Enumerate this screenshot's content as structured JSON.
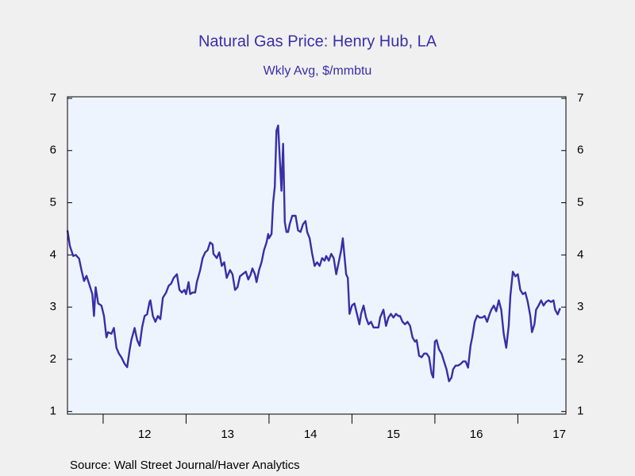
{
  "chart_data": {
    "type": "line",
    "title": "Natural Gas Price: Henry Hub, LA",
    "subtitle": "Wkly Avg, $/mmbtu",
    "source": "Source:  Wall Street Journal/Haver Analytics",
    "color": "#3a2ea8",
    "x": [
      2011.57,
      2011.6,
      2011.64,
      2011.67,
      2011.71,
      2011.74,
      2011.77,
      2011.8,
      2011.83,
      2011.87,
      2011.89,
      2011.91,
      2011.94,
      2011.98,
      2012.01,
      2012.04,
      2012.06,
      2012.1,
      2012.13,
      2012.16,
      2012.19,
      2012.22,
      2012.26,
      2012.29,
      2012.32,
      2012.34,
      2012.38,
      2012.41,
      2012.44,
      2012.47,
      2012.5,
      2012.53,
      2012.56,
      2012.57,
      2012.6,
      2012.63,
      2012.66,
      2012.69,
      2012.72,
      2012.76,
      2012.79,
      2012.82,
      2012.85,
      2012.89,
      2012.92,
      2012.95,
      2012.98,
      2013.0,
      2013.03,
      2013.05,
      2013.08,
      2013.11,
      2013.13,
      2013.17,
      2013.2,
      2013.23,
      2013.26,
      2013.29,
      2013.32,
      2013.33,
      2013.37,
      2013.4,
      2013.43,
      2013.46,
      2013.49,
      2013.53,
      2013.56,
      2013.59,
      2013.62,
      2013.65,
      2013.68,
      2013.72,
      2013.75,
      2013.78,
      2013.8,
      2013.83,
      2013.85,
      2013.88,
      2013.91,
      2013.94,
      2013.97,
      2013.99,
      2014.0,
      2014.03,
      2014.05,
      2014.07,
      2014.09,
      2014.11,
      2014.13,
      2014.15,
      2014.17,
      2014.19,
      2014.21,
      2014.23,
      2014.25,
      2014.28,
      2014.32,
      2014.35,
      2014.38,
      2014.41,
      2014.44,
      2014.46,
      2014.49,
      2014.52,
      2014.55,
      2014.58,
      2014.61,
      2014.64,
      2014.67,
      2014.69,
      2014.72,
      2014.75,
      2014.78,
      2014.81,
      2014.84,
      2014.87,
      2014.89,
      2014.9,
      2014.93,
      2014.95,
      2014.97,
      2015.0,
      2015.03,
      2015.06,
      2015.09,
      2015.11,
      2015.14,
      2015.17,
      2015.2,
      2015.23,
      2015.26,
      2015.29,
      2015.32,
      2015.34,
      2015.38,
      2015.41,
      2015.44,
      2015.47,
      2015.5,
      2015.53,
      2015.56,
      2015.58,
      2015.61,
      2015.64,
      2015.67,
      2015.7,
      2015.73,
      2015.76,
      2015.78,
      2015.81,
      2015.84,
      2015.87,
      2015.9,
      2015.93,
      2015.96,
      2015.98,
      2016.0,
      2016.02,
      2016.05,
      2016.08,
      2016.11,
      2016.14,
      2016.17,
      2016.2,
      2016.22,
      2016.25,
      2016.28,
      2016.31,
      2016.34,
      2016.37,
      2016.4,
      2016.43,
      2016.45,
      2016.48,
      2016.51,
      2016.54,
      2016.57,
      2016.6,
      2016.63,
      2016.66,
      2016.68,
      2016.71,
      2016.74,
      2016.77,
      2016.8,
      2016.83,
      2016.86,
      2016.89,
      2016.91,
      2016.94,
      2016.97,
      2017.0,
      2017.03,
      2017.06,
      2017.09,
      2017.12,
      2017.15,
      2017.17,
      2017.2,
      2017.22,
      2017.25,
      2017.28,
      2017.31,
      2017.34,
      2017.37,
      2017.4,
      2017.43,
      2017.45,
      2017.48,
      2017.51
    ],
    "values": [
      4.47,
      4.17,
      3.98,
      4.0,
      3.93,
      3.7,
      3.5,
      3.6,
      3.45,
      3.25,
      2.83,
      3.38,
      3.07,
      3.03,
      2.83,
      2.42,
      2.52,
      2.49,
      2.6,
      2.22,
      2.11,
      2.04,
      1.91,
      1.85,
      2.19,
      2.37,
      2.6,
      2.37,
      2.26,
      2.61,
      2.83,
      2.86,
      3.1,
      3.13,
      2.83,
      2.72,
      2.83,
      2.77,
      3.18,
      3.28,
      3.41,
      3.45,
      3.56,
      3.63,
      3.33,
      3.28,
      3.33,
      3.25,
      3.48,
      3.25,
      3.28,
      3.28,
      3.48,
      3.71,
      3.94,
      4.05,
      4.09,
      4.24,
      4.2,
      4.02,
      3.94,
      4.05,
      3.79,
      3.86,
      3.56,
      3.71,
      3.63,
      3.33,
      3.38,
      3.59,
      3.63,
      3.68,
      3.53,
      3.63,
      3.74,
      3.63,
      3.48,
      3.71,
      3.86,
      4.09,
      4.24,
      4.4,
      4.32,
      4.4,
      5.0,
      5.31,
      6.38,
      6.48,
      5.84,
      5.23,
      6.13,
      4.63,
      4.44,
      4.44,
      4.59,
      4.75,
      4.75,
      4.47,
      4.44,
      4.59,
      4.65,
      4.44,
      4.32,
      4.02,
      3.79,
      3.86,
      3.79,
      3.94,
      3.89,
      3.98,
      3.89,
      4.02,
      3.94,
      3.63,
      3.86,
      4.09,
      4.32,
      4.14,
      3.63,
      3.56,
      2.87,
      3.03,
      3.07,
      2.87,
      2.67,
      2.87,
      3.03,
      2.8,
      2.67,
      2.72,
      2.61,
      2.61,
      2.61,
      2.8,
      2.95,
      2.64,
      2.8,
      2.87,
      2.8,
      2.87,
      2.83,
      2.83,
      2.72,
      2.67,
      2.72,
      2.64,
      2.42,
      2.34,
      2.37,
      2.07,
      2.04,
      2.11,
      2.11,
      2.04,
      1.73,
      1.65,
      2.34,
      2.37,
      2.19,
      2.11,
      1.96,
      1.81,
      1.58,
      1.65,
      1.81,
      1.88,
      1.88,
      1.91,
      1.96,
      1.96,
      1.84,
      2.26,
      2.42,
      2.72,
      2.84,
      2.8,
      2.8,
      2.83,
      2.72,
      2.87,
      2.95,
      3.03,
      2.92,
      3.13,
      2.95,
      2.49,
      2.22,
      2.64,
      3.22,
      3.68,
      3.59,
      3.63,
      3.33,
      3.25,
      3.28,
      3.1,
      2.83,
      2.52,
      2.67,
      2.95,
      3.03,
      3.13,
      3.03,
      3.1,
      3.13,
      3.1,
      3.13,
      2.95,
      2.86,
      2.98
    ],
    "xlim": [
      2011.57,
      2017.58
    ],
    "xticks": [
      {
        "value": 2012.5,
        "label": "12"
      },
      {
        "value": 2013.5,
        "label": "13"
      },
      {
        "value": 2014.5,
        "label": "14"
      },
      {
        "value": 2015.5,
        "label": "15"
      },
      {
        "value": 2016.5,
        "label": "16"
      },
      {
        "value": 2017.5,
        "label": "17"
      }
    ],
    "ylim": [
      0.95,
      7.03
    ],
    "yticks": [
      1,
      2,
      3,
      4,
      5,
      6,
      7
    ]
  }
}
